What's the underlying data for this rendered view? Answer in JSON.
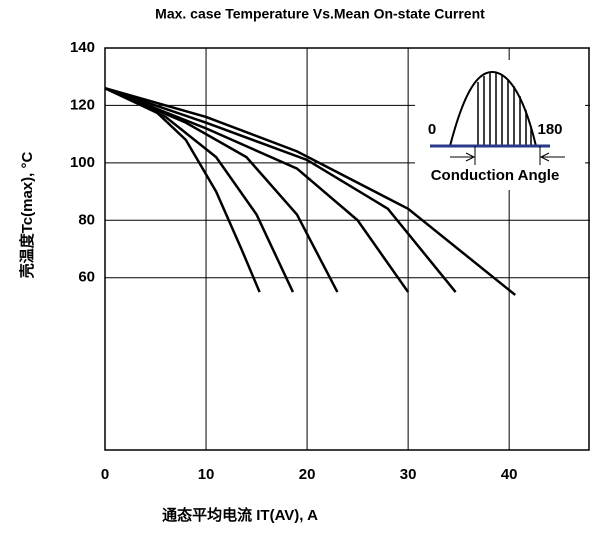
{
  "chart_data": {
    "type": "line",
    "title": "Max. case Temperature Vs.Mean On-state Current",
    "y_label": "壳温度Tc(max), °C",
    "x_label": "通态平均电流 IT(AV), A",
    "annotations": [
      "0",
      "180",
      "Conduction Angle"
    ],
    "xlim": [
      0,
      48
    ],
    "ylim": [
      0,
      140
    ],
    "xticks": [
      0,
      10,
      20,
      30,
      40
    ],
    "yticks": [
      60,
      80,
      100,
      120,
      140
    ],
    "grid": true,
    "series": [
      {
        "color": "#000000",
        "x": [
          0,
          5,
          8,
          11,
          13.5,
          15.3
        ],
        "values": [
          126,
          118,
          108,
          90,
          70,
          55
        ]
      },
      {
        "color": "#000000",
        "x": [
          0,
          6,
          11,
          15,
          18.6
        ],
        "values": [
          126,
          116,
          102,
          82,
          55
        ]
      },
      {
        "color": "#000000",
        "x": [
          0,
          8,
          14,
          19,
          23
        ],
        "values": [
          126,
          114,
          102,
          82,
          55
        ]
      },
      {
        "color": "#000000",
        "x": [
          0,
          10,
          19,
          25,
          30
        ],
        "values": [
          126,
          112,
          98,
          80,
          55
        ]
      },
      {
        "color": "#000000",
        "x": [
          0,
          10,
          20,
          28,
          34.7
        ],
        "values": [
          126,
          114,
          101,
          84,
          55
        ]
      },
      {
        "color": "#000000",
        "x": [
          0,
          10,
          19,
          30,
          40.6
        ],
        "values": [
          126,
          116,
          104,
          84,
          54
        ]
      }
    ]
  }
}
